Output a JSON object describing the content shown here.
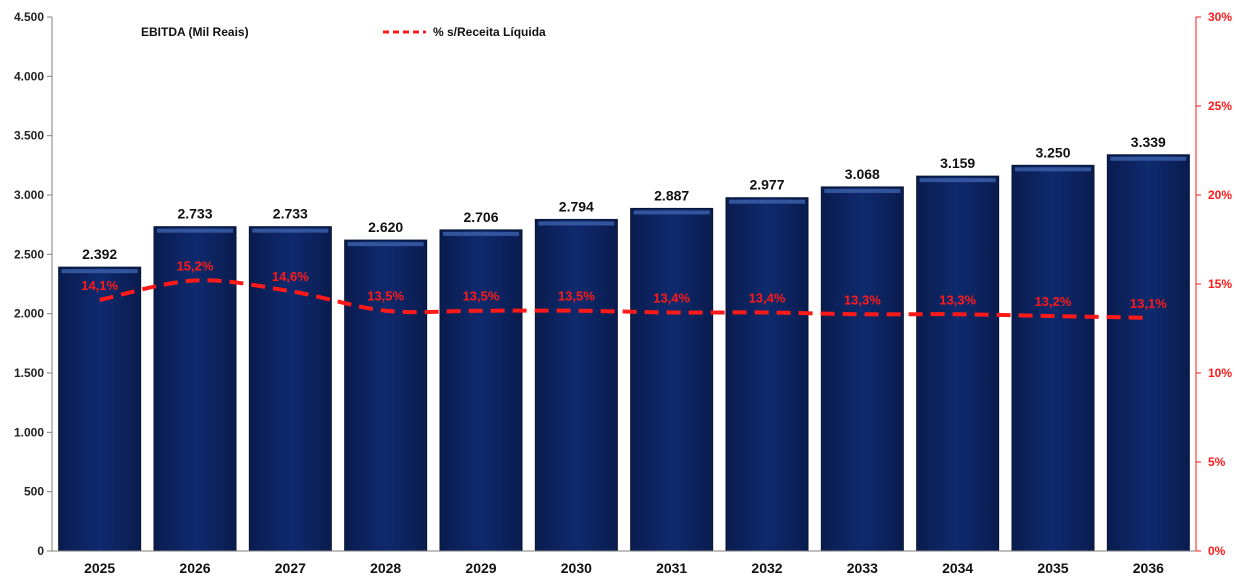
{
  "chart_data": {
    "type": "bar",
    "categories": [
      "2025",
      "2026",
      "2027",
      "2028",
      "2029",
      "2030",
      "2031",
      "2032",
      "2033",
      "2034",
      "2035",
      "2036"
    ],
    "series": [
      {
        "name": "EBITDA (Mil Reais)",
        "type": "bar",
        "axis": "left",
        "values": [
          2392,
          2733,
          2733,
          2620,
          2706,
          2794,
          2887,
          2977,
          3068,
          3159,
          3250,
          3339
        ],
        "labels": [
          "2.392",
          "2.733",
          "2.733",
          "2.620",
          "2.706",
          "2.794",
          "2.887",
          "2.977",
          "3.068",
          "3.159",
          "3.250",
          "3.339"
        ],
        "color": "#0d2361"
      },
      {
        "name": "% s/Receita Líquida",
        "type": "line",
        "style": "dashed",
        "axis": "right",
        "values": [
          14.1,
          15.2,
          14.6,
          13.5,
          13.5,
          13.5,
          13.4,
          13.4,
          13.3,
          13.3,
          13.2,
          13.1
        ],
        "labels": [
          "14,1%",
          "15,2%",
          "14,6%",
          "13,5%",
          "13,5%",
          "13,5%",
          "13,4%",
          "13,4%",
          "13,3%",
          "13,3%",
          "13,2%",
          "13,1%"
        ],
        "color": "#ff1a1a"
      }
    ],
    "y_left": {
      "ylim": [
        0,
        4500
      ],
      "ticks": [
        0,
        500,
        1000,
        1500,
        2000,
        2500,
        3000,
        3500,
        4000,
        4500
      ],
      "tick_labels": [
        "0",
        "500",
        "1.000",
        "1.500",
        "2.000",
        "2.500",
        "3.000",
        "3.500",
        "4.000",
        "4.500"
      ]
    },
    "y_right": {
      "ylim": [
        0,
        30
      ],
      "ticks": [
        0,
        5,
        10,
        15,
        20,
        25,
        30
      ],
      "tick_labels": [
        "0%",
        "5%",
        "10%",
        "15%",
        "20%",
        "25%",
        "30%"
      ],
      "color": "#ff1a1a"
    },
    "grid": false,
    "legend_placement": "top-left"
  }
}
